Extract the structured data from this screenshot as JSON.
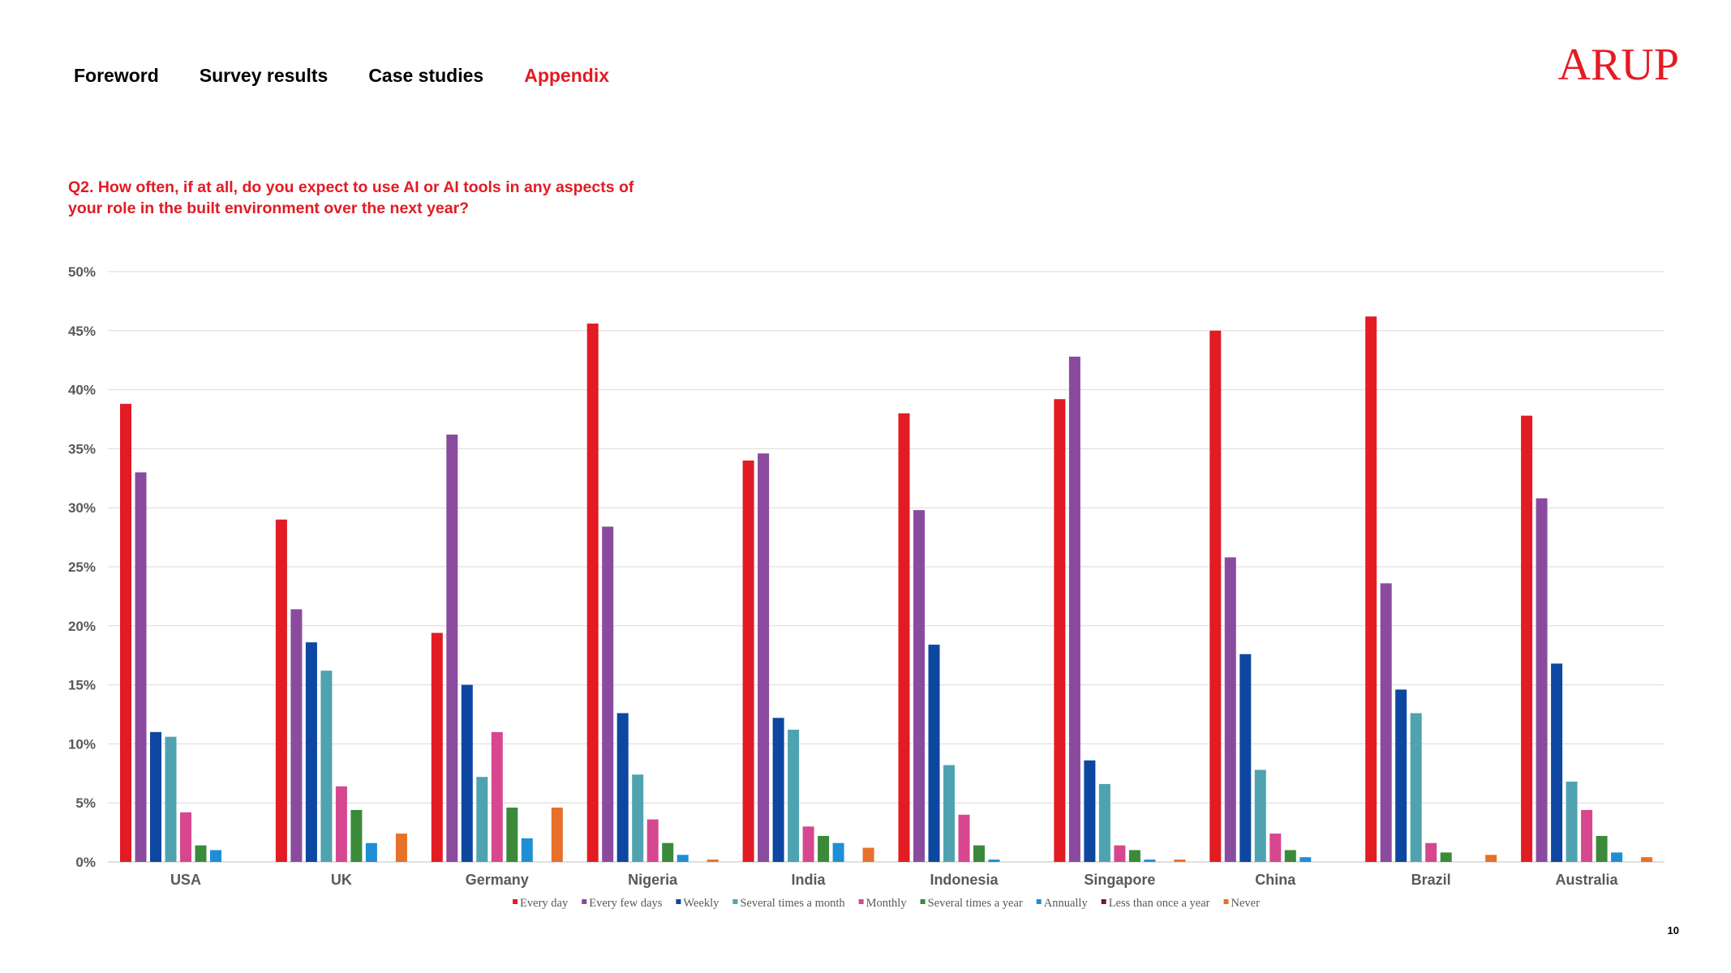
{
  "nav": {
    "items": [
      {
        "label": "Foreword",
        "active": false
      },
      {
        "label": "Survey results",
        "active": false
      },
      {
        "label": "Case studies",
        "active": false
      },
      {
        "label": "Appendix",
        "active": true
      }
    ]
  },
  "logo": {
    "text": "ARUP"
  },
  "question": "Q2. How often, if at all, do you expect to use AI or AI tools in any aspects of your role in the built environment over the next year?",
  "page_number": "10",
  "chart_data": {
    "type": "bar",
    "title": "",
    "xlabel": "",
    "ylabel": "",
    "ylim": [
      0,
      50
    ],
    "yticks": [
      0,
      5,
      10,
      15,
      20,
      25,
      30,
      35,
      40,
      45,
      50
    ],
    "ytick_labels": [
      "0%",
      "5%",
      "10%",
      "15%",
      "20%",
      "25%",
      "30%",
      "35%",
      "40%",
      "45%",
      "50%"
    ],
    "grid": true,
    "legend_position": "bottom",
    "categories": [
      "USA",
      "UK",
      "Germany",
      "Nigeria",
      "India",
      "Indonesia",
      "Singapore",
      "China",
      "Brazil",
      "Australia"
    ],
    "series": [
      {
        "name": "Every day",
        "color": "#e31b23",
        "values": [
          38.8,
          29.0,
          19.4,
          45.6,
          34.0,
          38.0,
          39.2,
          45.0,
          46.2,
          37.8
        ]
      },
      {
        "name": "Every few days",
        "color": "#8a4b9e",
        "values": [
          33.0,
          21.4,
          36.2,
          28.4,
          34.6,
          29.8,
          42.8,
          25.8,
          23.6,
          30.8
        ]
      },
      {
        "name": "Weekly",
        "color": "#0d47a1",
        "values": [
          11.0,
          18.6,
          15.0,
          12.6,
          12.2,
          18.4,
          8.6,
          17.6,
          14.6,
          16.8
        ]
      },
      {
        "name": "Several times a month",
        "color": "#4fa3b1",
        "values": [
          10.6,
          16.2,
          7.2,
          7.4,
          11.2,
          8.2,
          6.6,
          7.8,
          12.6,
          6.8
        ]
      },
      {
        "name": "Monthly",
        "color": "#d6478f",
        "values": [
          4.2,
          6.4,
          11.0,
          3.6,
          3.0,
          4.0,
          1.4,
          2.4,
          1.6,
          4.4
        ]
      },
      {
        "name": "Several times a year",
        "color": "#3a8a3a",
        "values": [
          1.4,
          4.4,
          4.6,
          1.6,
          2.2,
          1.4,
          1.0,
          1.0,
          0.8,
          2.2
        ]
      },
      {
        "name": "Annually",
        "color": "#1e8fd6",
        "values": [
          1.0,
          1.6,
          2.0,
          0.6,
          1.6,
          0.2,
          0.2,
          0.4,
          0.0,
          0.8
        ]
      },
      {
        "name": "Less than once a year",
        "color": "#7b1a1a",
        "values": [
          0.0,
          0.0,
          0.0,
          0.0,
          0.0,
          0.0,
          0.0,
          0.0,
          0.0,
          0.0
        ]
      },
      {
        "name": "Never",
        "color": "#e8702a",
        "values": [
          0.0,
          2.4,
          4.6,
          0.2,
          1.2,
          0.0,
          0.2,
          0.0,
          0.6,
          0.4
        ]
      }
    ]
  }
}
